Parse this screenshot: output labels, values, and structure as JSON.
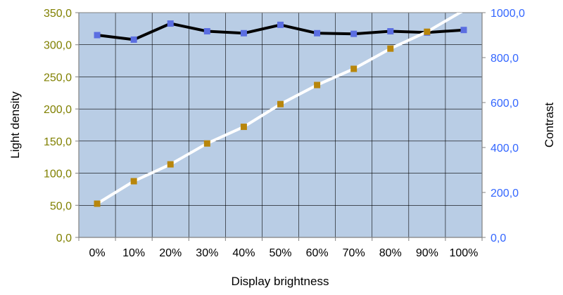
{
  "chart_data": {
    "type": "line",
    "categories": [
      "0%",
      "10%",
      "20%",
      "30%",
      "40%",
      "50%",
      "60%",
      "70%",
      "80%",
      "90%",
      "100%"
    ],
    "xlabel": "Display brightness",
    "ylabel_left": "Light density",
    "ylabel_right": "Contrast",
    "ylim_left": [
      0,
      350
    ],
    "ylim_right": [
      0,
      1000
    ],
    "yticks_left": [
      "0,0",
      "50,0",
      "100,0",
      "150,0",
      "200,0",
      "250,0",
      "300,0",
      "350,0"
    ],
    "yticks_right": [
      "0,0",
      "200,0",
      "400,0",
      "600,0",
      "800,0",
      "1000,0"
    ],
    "grid": true,
    "background_color": "#b9cde5",
    "left_tick_color": "#808000",
    "right_tick_color": "#3366ff",
    "series": [
      {
        "axis": "left",
        "line_color": "#000000",
        "marker_color": "#5b6ee1",
        "marker": "square",
        "values": [
          315,
          308,
          333,
          321,
          318,
          331,
          318,
          317,
          321,
          319,
          323
        ]
      },
      {
        "axis": "right",
        "line_color": "#ffffff",
        "marker_color": "#b8860b",
        "marker": "square",
        "values": [
          150,
          250,
          325,
          418,
          492,
          593,
          678,
          750,
          840,
          915,
          1010
        ]
      }
    ]
  }
}
